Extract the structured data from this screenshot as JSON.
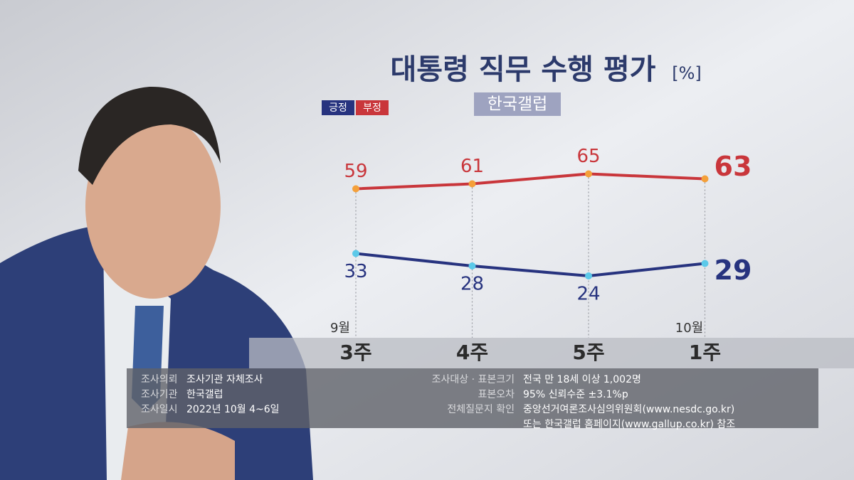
{
  "chart_data": {
    "type": "line",
    "title": "대통령 직무 수행 평가",
    "unit": "[%]",
    "source": "한국갤럽",
    "categories": [
      "3주",
      "4주",
      "5주",
      "1주"
    ],
    "month_labels": [
      "9월",
      null,
      null,
      "10월"
    ],
    "series": [
      {
        "name": "긍정",
        "color": "#27337f",
        "marker_color": "#5cc9e9",
        "values": [
          33,
          28,
          24,
          29
        ]
      },
      {
        "name": "부정",
        "color": "#c9363b",
        "marker_color": "#f4a03a",
        "values": [
          59,
          61,
          65,
          63
        ]
      }
    ],
    "ylim": [
      0,
      70
    ]
  },
  "notes": {
    "left": [
      [
        "조사의뢰",
        "조사기관 자체조사"
      ],
      [
        "조사기관",
        "한국갤럽"
      ],
      [
        "조사일시",
        "2022년 10월 4~6일"
      ]
    ],
    "right": [
      [
        "조사대상 · 표본크기",
        "전국 만 18세 이상 1,002명"
      ],
      [
        "표본오차",
        "95% 신뢰수준 ±3.1%p"
      ],
      [
        "전체질문지 확인",
        "중앙선거여론조사심의위원회(www.nesdc.go.kr)"
      ],
      [
        null,
        "또는 한국갤럽 홈페이지(www.gallup.co.kr) 참조"
      ]
    ]
  }
}
